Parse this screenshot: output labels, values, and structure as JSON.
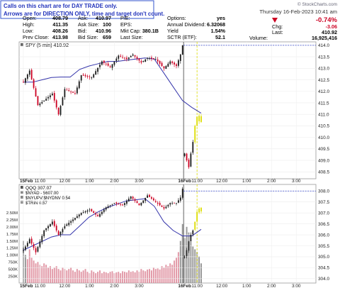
{
  "notice": {
    "line1": "Calls on this chart are for DAY TRADE only.",
    "line2": "Arrows are for DIRECTION ONLY, time and target don't count."
  },
  "header": {
    "datetime": "Thursday  16-Feb-2023  10:41 am",
    "watermark": "© StockCharts.com"
  },
  "quote": {
    "rows": [
      [
        {
          "l": "Open:",
          "v": "408.79"
        },
        {
          "l": "Ask:",
          "v": "410.97"
        },
        {
          "l": "P/E:",
          "v": ""
        },
        {
          "l": "Options:",
          "v": "yes"
        }
      ],
      [
        {
          "l": "High:",
          "v": "411.35"
        },
        {
          "l": "Ask Size:",
          "v": "100"
        },
        {
          "l": "EPS:",
          "v": ""
        },
        {
          "l": "Annual Dividend:",
          "v": "6.32068"
        }
      ],
      [
        {
          "l": "Low:",
          "v": "408.26"
        },
        {
          "l": "Bid:",
          "v": "410.96"
        },
        {
          "l": "Mkt Cap:",
          "v": "380.1B"
        },
        {
          "l": "Yield",
          "v": "1.54%"
        }
      ],
      [
        {
          "l": "Prev Close:",
          "v": "413.98"
        },
        {
          "l": "Bid Size:",
          "v": "659"
        },
        {
          "l": "Last Size:",
          "v": ""
        },
        {
          "l": "SCTR (ETF):",
          "v": "52.1"
        }
      ]
    ],
    "chg_pct": "-0.74%",
    "chg_label": "Chg:",
    "chg_value": "-3.06",
    "last_label": "Last:",
    "last_value": "410.92",
    "volume_label": "Volume:",
    "volume_value": "16,925,416"
  },
  "colors": {
    "up": "#1a1a1a",
    "down": "#cc0022",
    "latest": "#dddd00",
    "ma": "#3333aa",
    "ma2": "#dddddd",
    "guide": "#3344cc",
    "marker": "#dddd00",
    "volume": "#dd8899",
    "volume_dark": "#888888"
  },
  "chart_data": [
    {
      "type": "candlestick",
      "title": "SPY (5 min) 410.92",
      "session_break_index": 78,
      "marker_index": 84,
      "x_tick_labels": [
        "15Feb",
        "11:00",
        "12:00",
        "1:00",
        "2:00",
        "3:00",
        "16Feb",
        "11:00",
        "12:00",
        "1:00",
        "2:00",
        "3:00"
      ],
      "ylim": [
        408.2,
        414.15
      ],
      "y_ticks": [
        408.5,
        409.0,
        409.5,
        410.0,
        410.5,
        411.0,
        411.5,
        412.0,
        412.5,
        413.0,
        413.5,
        414.0
      ],
      "y_tick_labels": [
        "408.5",
        "409.0",
        "409.5",
        "410.0",
        "410.5",
        "411.0",
        "411.5",
        "412.0",
        "412.5",
        "413.0",
        "413.5",
        "414.0"
      ],
      "guide_level": 414.0,
      "anchors": [
        [
          0,
          412.4
        ],
        [
          3,
          412.9
        ],
        [
          7,
          411.4
        ],
        [
          10,
          411.6
        ],
        [
          14,
          411.9
        ],
        [
          17,
          411.0
        ],
        [
          20,
          412.1
        ],
        [
          25,
          411.9
        ],
        [
          28,
          412.7
        ],
        [
          33,
          412.6
        ],
        [
          38,
          413.3
        ],
        [
          42,
          413.05
        ],
        [
          46,
          413.55
        ],
        [
          50,
          413.4
        ],
        [
          53,
          413.6
        ],
        [
          57,
          413.25
        ],
        [
          60,
          413.45
        ],
        [
          64,
          413.4
        ],
        [
          68,
          413.0
        ],
        [
          71,
          413.3
        ],
        [
          74,
          413.1
        ],
        [
          76,
          413.6
        ],
        [
          77,
          414.0
        ],
        [
          78,
          409.3
        ],
        [
          79,
          409.0
        ],
        [
          80,
          408.7
        ],
        [
          81,
          409.3
        ],
        [
          82,
          409.8
        ],
        [
          83,
          410.5
        ],
        [
          84,
          410.9
        ],
        [
          85,
          410.7
        ],
        [
          86,
          410.92
        ]
      ],
      "series": [
        {
          "name": "SMA",
          "values": [
            412.4,
            412.4,
            412.5,
            412.6,
            412.62,
            412.62,
            412.95,
            413.1,
            413.2,
            413.3,
            413.3,
            413.35,
            413.4,
            413.45,
            413.4,
            412.8,
            412.2,
            411.6,
            411.3,
            411.05
          ]
        }
      ]
    },
    {
      "type": "candlestick",
      "title": "QQQ 307.07",
      "legend": [
        "$NYAD - 5607.00",
        "$NYUPV:$NYDNV 0.54",
        "$TRIN 0.57"
      ],
      "session_break_index": 78,
      "marker_index": 84,
      "x_tick_labels": [
        "15Feb",
        "11:00",
        "12:00",
        "1:00",
        "2:00",
        "3:00",
        "16Feb",
        "11:00",
        "12:00",
        "1:00",
        "2:00",
        "3:00"
      ],
      "ylim": [
        303.8,
        308.3
      ],
      "y_ticks": [
        304.0,
        304.5,
        305.0,
        305.5,
        306.0,
        306.5,
        307.0,
        307.5,
        308.0
      ],
      "y_tick_labels": [
        "304.0",
        "304.5",
        "305.0",
        "305.5",
        "306.0",
        "306.5",
        "307.0",
        "307.5",
        "308.0"
      ],
      "guide_level": 308.0,
      "anchors": [
        [
          0,
          305.3
        ],
        [
          3,
          305.8
        ],
        [
          6,
          305.2
        ],
        [
          10,
          306.2
        ],
        [
          14,
          306.6
        ],
        [
          17,
          306.0
        ],
        [
          20,
          306.4
        ],
        [
          24,
          306.7
        ],
        [
          28,
          307.0
        ],
        [
          32,
          307.15
        ],
        [
          36,
          306.85
        ],
        [
          40,
          307.25
        ],
        [
          44,
          307.45
        ],
        [
          48,
          307.35
        ],
        [
          52,
          307.75
        ],
        [
          56,
          307.35
        ],
        [
          60,
          307.8
        ],
        [
          64,
          307.5
        ],
        [
          68,
          307.2
        ],
        [
          71,
          307.45
        ],
        [
          74,
          307.45
        ],
        [
          76,
          307.7
        ],
        [
          77,
          308.1
        ],
        [
          78,
          305.0
        ],
        [
          79,
          305.3
        ],
        [
          80,
          305.7
        ],
        [
          81,
          306.0
        ],
        [
          82,
          306.2
        ],
        [
          83,
          306.6
        ],
        [
          84,
          307.05
        ],
        [
          85,
          307.2
        ],
        [
          86,
          307.07
        ]
      ],
      "series": [
        {
          "name": "SMA",
          "values": [
            305.3,
            305.5,
            305.7,
            305.9,
            306.0,
            306.0,
            306.4,
            306.8,
            307.05,
            307.25,
            307.4,
            307.55,
            307.6,
            307.65,
            307.3,
            306.6,
            306.2,
            305.95,
            305.95,
            306.25
          ]
        }
      ],
      "volume": {
        "ylim": [
          0,
          2600000
        ],
        "y_ticks": [
          250000,
          500000,
          750000,
          1000000,
          1250000,
          1500000,
          1750000,
          2000000,
          2250000,
          2500000
        ],
        "y_tick_labels": [
          "250K",
          "500K",
          "750K",
          "1.00M",
          "1.25M",
          "1.50M",
          "1.75M",
          "2.00M",
          "2.25M",
          "2.50M"
        ],
        "values": [
          1500000,
          1000000,
          850000,
          1200000,
          900000,
          800000,
          700000,
          750000,
          650000,
          600000,
          700000,
          650000,
          550000,
          600000,
          500000,
          550000,
          600000,
          500000,
          450000,
          550000,
          500000,
          450000,
          500000,
          550000,
          450000,
          400000,
          500000,
          450000,
          400000,
          450000,
          500000,
          400000,
          350000,
          450000,
          400000,
          350000,
          400000,
          450000,
          350000,
          400000,
          380000,
          350000,
          400000,
          420000,
          350000,
          380000,
          400000,
          350000,
          420000,
          400000,
          380000,
          450000,
          400000,
          420000,
          380000,
          450000,
          400000,
          500000,
          450000,
          420000,
          480000,
          500000,
          450000,
          550000,
          500000,
          520000,
          480000,
          600000,
          550000,
          650000,
          600000,
          700000,
          650000,
          800000,
          900000,
          1100000,
          1500000,
          2100000,
          1600000,
          2000000,
          1800000,
          1500000,
          1300000,
          1200000,
          1100000,
          950000,
          700000
        ]
      }
    }
  ]
}
